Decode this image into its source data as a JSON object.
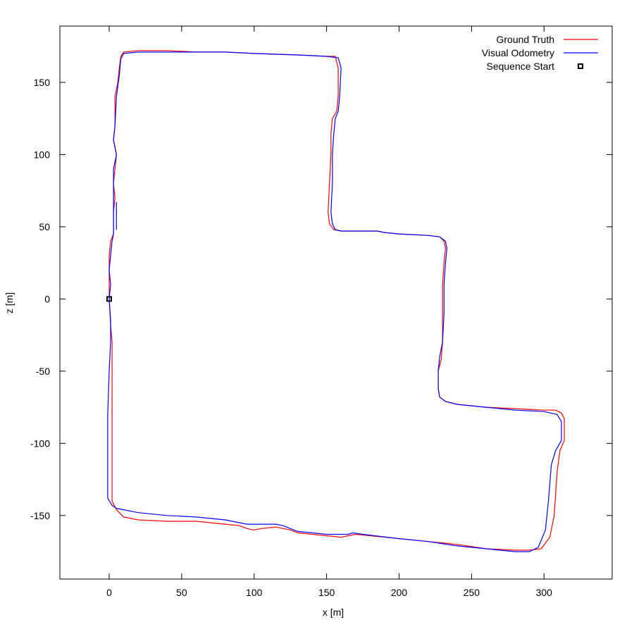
{
  "chart_data": {
    "type": "line",
    "xlabel": "x [m]",
    "ylabel": "z [m]",
    "xlim": [
      -34,
      347
    ],
    "ylim": [
      -194,
      189
    ],
    "xticks": [
      0,
      50,
      100,
      150,
      200,
      250,
      300
    ],
    "yticks": [
      -150,
      -100,
      -50,
      0,
      50,
      100,
      150
    ],
    "grid": false,
    "legend_position": "top-right",
    "series": [
      {
        "name": "Ground Truth",
        "color": "#ff0000",
        "points": [
          [
            0,
            0
          ],
          [
            1,
            -18
          ],
          [
            2,
            -30
          ],
          [
            2,
            -50
          ],
          [
            2,
            -80
          ],
          [
            2,
            -110
          ],
          [
            2,
            -140
          ],
          [
            5,
            -146
          ],
          [
            10,
            -151
          ],
          [
            20,
            -153
          ],
          [
            40,
            -154
          ],
          [
            60,
            -154
          ],
          [
            80,
            -156
          ],
          [
            90,
            -157
          ],
          [
            95,
            -159
          ],
          [
            100,
            -160
          ],
          [
            105,
            -159
          ],
          [
            115,
            -158
          ],
          [
            125,
            -160
          ],
          [
            130,
            -162
          ],
          [
            140,
            -163
          ],
          [
            150,
            -164
          ],
          [
            160,
            -165
          ],
          [
            165,
            -164
          ],
          [
            170,
            -163
          ],
          [
            180,
            -164
          ],
          [
            200,
            -166
          ],
          [
            220,
            -168
          ],
          [
            240,
            -170
          ],
          [
            260,
            -173
          ],
          [
            280,
            -174
          ],
          [
            290,
            -174
          ],
          [
            298,
            -173
          ],
          [
            304,
            -165
          ],
          [
            307,
            -150
          ],
          [
            309,
            -120
          ],
          [
            311,
            -105
          ],
          [
            314,
            -98
          ],
          [
            314,
            -83
          ],
          [
            312,
            -79
          ],
          [
            308,
            -77
          ],
          [
            300,
            -77
          ],
          [
            280,
            -76
          ],
          [
            260,
            -75
          ],
          [
            240,
            -73
          ],
          [
            232,
            -71
          ],
          [
            228,
            -68
          ],
          [
            227,
            -62
          ],
          [
            227,
            -50
          ],
          [
            229,
            -42
          ],
          [
            230,
            -30
          ],
          [
            230,
            -10
          ],
          [
            230,
            10
          ],
          [
            231,
            25
          ],
          [
            232,
            35
          ],
          [
            231,
            40
          ],
          [
            228,
            43
          ],
          [
            220,
            44
          ],
          [
            200,
            45
          ],
          [
            190,
            46
          ],
          [
            185,
            47
          ],
          [
            170,
            47
          ],
          [
            160,
            47
          ],
          [
            155,
            48
          ],
          [
            152,
            52
          ],
          [
            151,
            60
          ],
          [
            152,
            80
          ],
          [
            153,
            100
          ],
          [
            153,
            115
          ],
          [
            154,
            125
          ],
          [
            157,
            130
          ],
          [
            158,
            140
          ],
          [
            158,
            160
          ],
          [
            156,
            168
          ],
          [
            150,
            168
          ],
          [
            130,
            169
          ],
          [
            100,
            170
          ],
          [
            80,
            171
          ],
          [
            60,
            171
          ],
          [
            40,
            172
          ],
          [
            20,
            172
          ],
          [
            10,
            171
          ],
          [
            8,
            168
          ],
          [
            7,
            160
          ],
          [
            6,
            150
          ],
          [
            4,
            140
          ],
          [
            4,
            120
          ],
          [
            3,
            110
          ],
          [
            5,
            100
          ],
          [
            4,
            90
          ],
          [
            3,
            80
          ],
          [
            4,
            70
          ],
          [
            3,
            60
          ],
          [
            3,
            45
          ],
          [
            1,
            40
          ],
          [
            0,
            30
          ],
          [
            0,
            20
          ],
          [
            0,
            10
          ],
          [
            0,
            0
          ]
        ]
      },
      {
        "name": "Visual Odometry",
        "color": "#0000ff",
        "points": [
          [
            0,
            0
          ],
          [
            1,
            -15
          ],
          [
            1,
            -30
          ],
          [
            0,
            -50
          ],
          [
            -1,
            -80
          ],
          [
            -1,
            -110
          ],
          [
            -1,
            -138
          ],
          [
            2,
            -143
          ],
          [
            5,
            -145
          ],
          [
            10,
            -146
          ],
          [
            20,
            -148
          ],
          [
            40,
            -150
          ],
          [
            60,
            -151
          ],
          [
            80,
            -153
          ],
          [
            90,
            -155
          ],
          [
            95,
            -156
          ],
          [
            105,
            -156
          ],
          [
            115,
            -156
          ],
          [
            120,
            -157
          ],
          [
            125,
            -159
          ],
          [
            130,
            -161
          ],
          [
            140,
            -162
          ],
          [
            150,
            -163
          ],
          [
            160,
            -163
          ],
          [
            165,
            -163
          ],
          [
            168,
            -162
          ],
          [
            175,
            -163
          ],
          [
            200,
            -166
          ],
          [
            220,
            -168
          ],
          [
            240,
            -171
          ],
          [
            260,
            -173
          ],
          [
            280,
            -175
          ],
          [
            290,
            -175
          ],
          [
            296,
            -172
          ],
          [
            301,
            -160
          ],
          [
            303,
            -140
          ],
          [
            305,
            -115
          ],
          [
            308,
            -105
          ],
          [
            312,
            -98
          ],
          [
            312,
            -85
          ],
          [
            309,
            -80
          ],
          [
            300,
            -78
          ],
          [
            280,
            -77
          ],
          [
            260,
            -75
          ],
          [
            240,
            -73
          ],
          [
            232,
            -71
          ],
          [
            228,
            -68
          ],
          [
            227,
            -62
          ],
          [
            227,
            -50
          ],
          [
            228,
            -40
          ],
          [
            230,
            -30
          ],
          [
            231,
            -10
          ],
          [
            231,
            10
          ],
          [
            232,
            25
          ],
          [
            233,
            35
          ],
          [
            232,
            40
          ],
          [
            228,
            43
          ],
          [
            220,
            44
          ],
          [
            200,
            45
          ],
          [
            190,
            46
          ],
          [
            185,
            47
          ],
          [
            170,
            47
          ],
          [
            160,
            47
          ],
          [
            156,
            48
          ],
          [
            154,
            52
          ],
          [
            153,
            60
          ],
          [
            154,
            80
          ],
          [
            154,
            100
          ],
          [
            155,
            115
          ],
          [
            156,
            125
          ],
          [
            158,
            130
          ],
          [
            159,
            140
          ],
          [
            160,
            160
          ],
          [
            158,
            167
          ],
          [
            150,
            168
          ],
          [
            130,
            169
          ],
          [
            100,
            170
          ],
          [
            80,
            171
          ],
          [
            60,
            171
          ],
          [
            40,
            171
          ],
          [
            20,
            171
          ],
          [
            10,
            170
          ],
          [
            8,
            166
          ],
          [
            7,
            155
          ],
          [
            5,
            140
          ],
          [
            4,
            120
          ],
          [
            3,
            110
          ],
          [
            5,
            100
          ],
          [
            3,
            90
          ],
          [
            3,
            80
          ],
          [
            3,
            70
          ],
          [
            3,
            60
          ],
          [
            3,
            45
          ],
          [
            2,
            40
          ],
          [
            1,
            30
          ],
          [
            0,
            20
          ],
          [
            1,
            10
          ],
          [
            0,
            0
          ]
        ]
      },
      {
        "name": "Sequence Start",
        "color": "#000000",
        "marker": "square",
        "points": [
          [
            0,
            0
          ]
        ]
      }
    ],
    "extra_segment": [
      [
        5,
        48
      ],
      [
        5,
        67
      ]
    ]
  }
}
